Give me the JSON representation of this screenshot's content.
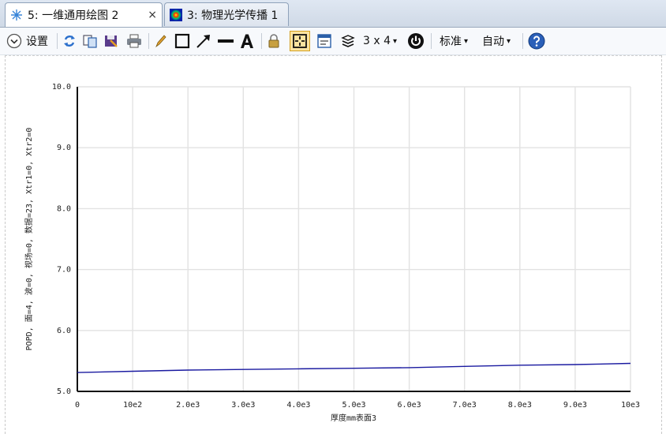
{
  "tabs": [
    {
      "label": "5: 一维通用绘图 2",
      "close": "×",
      "active": true,
      "icon": "plot-icon"
    },
    {
      "label": "3: 物理光学传播 1",
      "active": false,
      "icon": "beam-icon"
    }
  ],
  "toolbar": {
    "settings_label": "设置",
    "layout_label": "3 x 4",
    "standard_label": "标准",
    "auto_label": "自动",
    "dropdown_arrow": "▾"
  },
  "chart_data": {
    "type": "line",
    "title": "",
    "xlabel": "厚度mm表面3",
    "ylabel": "POPD, 面=4, 波=0, 视场=0, 数据=23, Xtr1=0, Xtr2=0",
    "xlim": [
      0,
      10000
    ],
    "ylim": [
      5.0,
      10.0
    ],
    "x_ticks": [
      0,
      1000,
      2000,
      3000,
      4000,
      5000,
      6000,
      7000,
      8000,
      9000,
      10000
    ],
    "x_tick_labels": [
      "0",
      "10e2",
      "2.0e3",
      "3.0e3",
      "4.0e3",
      "5.0e3",
      "6.0e3",
      "7.0e3",
      "8.0e3",
      "9.0e3",
      "10e3"
    ],
    "y_ticks": [
      5.0,
      6.0,
      7.0,
      8.0,
      9.0,
      10.0
    ],
    "y_tick_labels": [
      "5.0",
      "6.0",
      "7.0",
      "8.0",
      "9.0",
      "10.0"
    ],
    "grid": true,
    "series": [
      {
        "color": "#1a1aa0",
        "x": [
          0,
          1000,
          2000,
          3000,
          4000,
          5000,
          6000,
          7000,
          8000,
          9000,
          10000
        ],
        "y": [
          5.31,
          5.33,
          5.35,
          5.36,
          5.37,
          5.38,
          5.39,
          5.41,
          5.43,
          5.44,
          5.46
        ]
      }
    ]
  }
}
